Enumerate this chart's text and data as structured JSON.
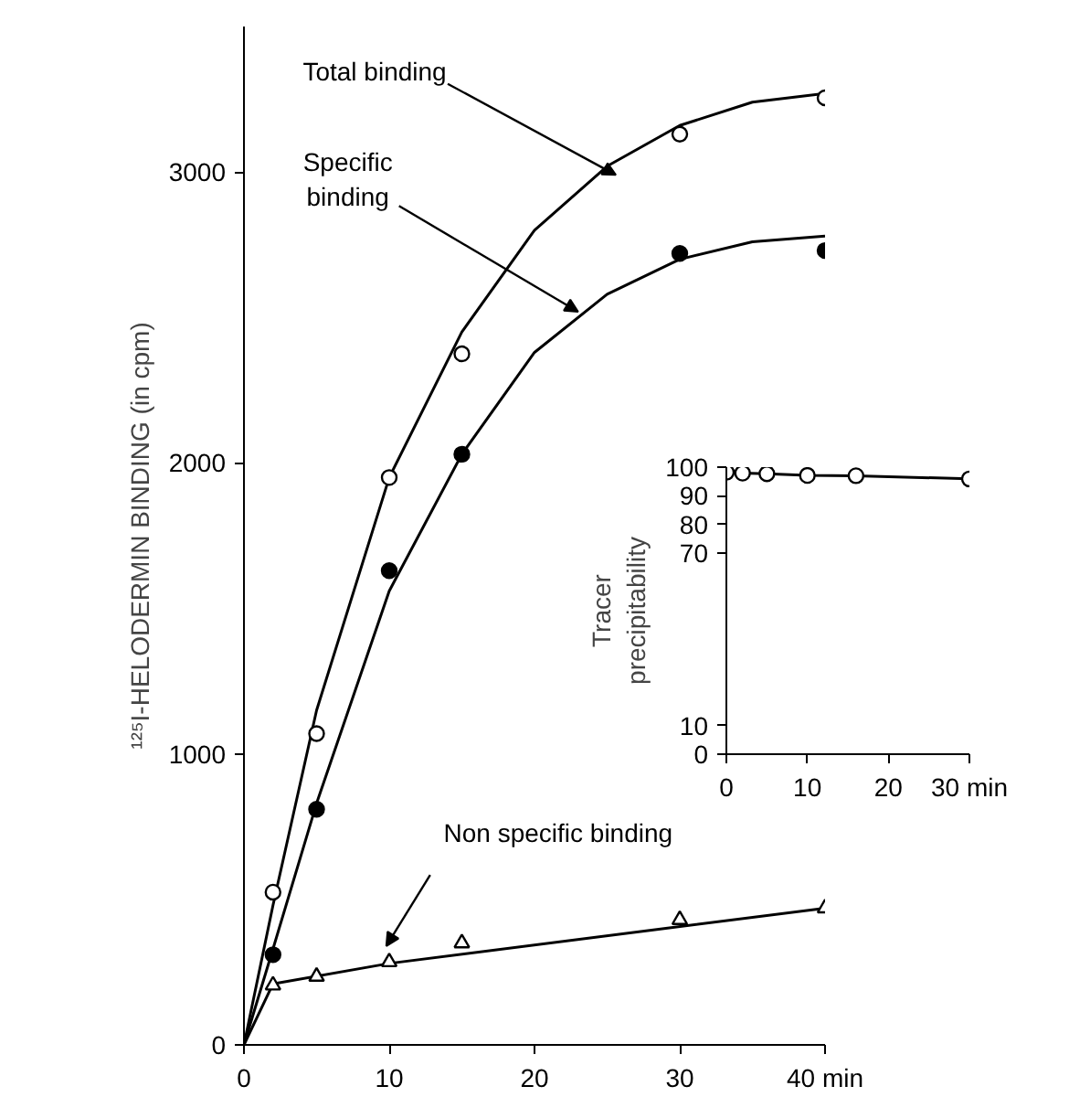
{
  "chart_data": [
    {
      "type": "scatter",
      "ylabel": "¹²⁵I-HELODERMIN BINDING (in cpm)",
      "xlim": [
        0,
        40
      ],
      "ylim": [
        0,
        3500
      ],
      "xticks": [
        0,
        10,
        20,
        30,
        {
          "value": 40,
          "label": "40 min"
        }
      ],
      "yticks": [
        0,
        1000,
        2000,
        3000
      ],
      "grid": false,
      "series": [
        {
          "type": "line",
          "color": "#000000",
          "x": [
            0,
            2,
            5,
            10,
            15,
            20,
            25,
            30,
            35,
            40
          ],
          "values": [
            0,
            480,
            1150,
            1950,
            2450,
            2800,
            3020,
            3160,
            3240,
            3270
          ]
        },
        {
          "type": "line",
          "color": "#000000",
          "x": [
            0,
            2,
            5,
            10,
            15,
            20,
            25,
            30,
            35,
            40
          ],
          "values": [
            0,
            330,
            830,
            1560,
            2030,
            2380,
            2580,
            2700,
            2760,
            2780
          ]
        },
        {
          "type": "line",
          "color": "#000000",
          "x": [
            0,
            2,
            10,
            40
          ],
          "values": [
            0,
            210,
            280,
            470
          ]
        },
        {
          "type": "scatter",
          "marker": "circle",
          "color": "#ffffff",
          "x": [
            2,
            5,
            10,
            15,
            30,
            40
          ],
          "values": [
            525,
            1070,
            1950,
            2375,
            3130,
            3255
          ]
        },
        {
          "type": "scatter",
          "marker": "circle",
          "color": "#000000",
          "x": [
            2,
            5,
            10,
            15,
            30,
            40
          ],
          "values": [
            310,
            810,
            1630,
            2030,
            2720,
            2730
          ]
        },
        {
          "type": "scatter",
          "marker": "triangle",
          "color": "#ffffff",
          "x": [
            2,
            5,
            10,
            15,
            30,
            40
          ],
          "values": [
            205,
            235,
            285,
            350,
            430,
            470
          ]
        }
      ],
      "annotations": [
        {
          "text": "Total binding",
          "x": 25.6,
          "y": 2990
        },
        {
          "text": "Specific\nbinding",
          "x": 23,
          "y": 2520
        },
        {
          "text": "Non specific binding",
          "x": 9.8,
          "y": 340
        }
      ]
    },
    {
      "type": "line",
      "ylabel": "Tracer\nprecipitability",
      "xlim": [
        0,
        30
      ],
      "ylim": [
        0,
        100
      ],
      "xticks": [
        0,
        10,
        20,
        {
          "value": 30,
          "label": "30 min"
        }
      ],
      "yticks": [
        0,
        10,
        70,
        80,
        90,
        100
      ],
      "grid": false,
      "marker": "circle",
      "series": [
        {
          "color": "#ffffff",
          "x": [
            0,
            2,
            5,
            10,
            16,
            30
          ],
          "values": [
            98.2,
            97.9,
            97.7,
            97.1,
            97,
            95.9
          ]
        }
      ]
    }
  ]
}
